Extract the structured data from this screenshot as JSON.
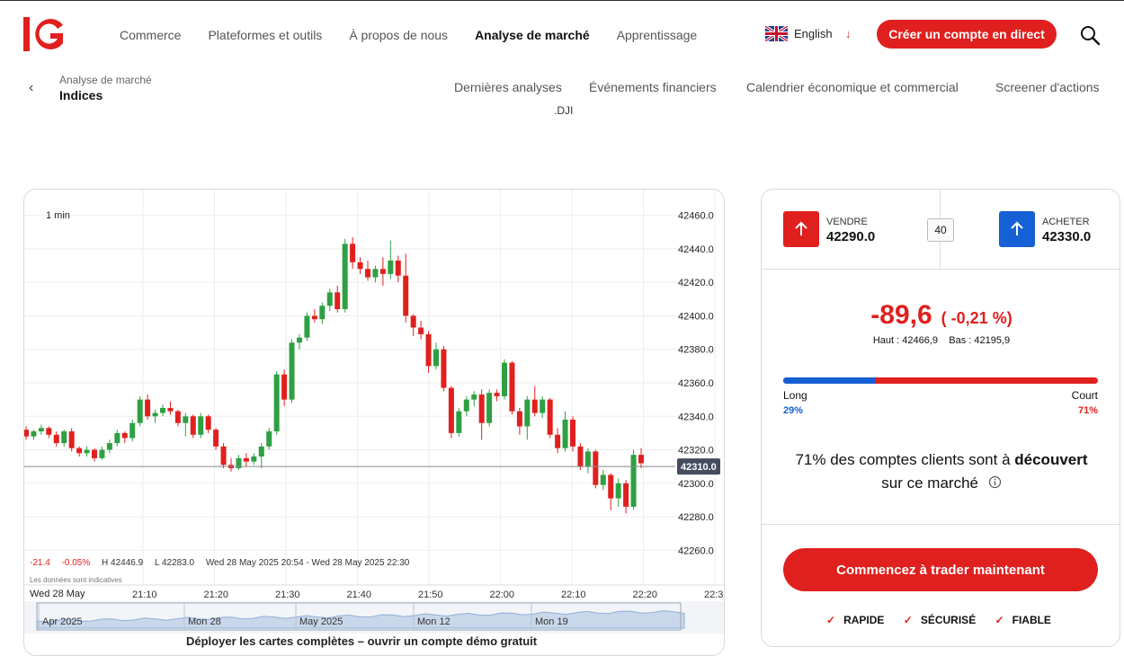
{
  "brand": {
    "logo_text": "IG",
    "accent": "#e0201e",
    "blue": "#1560d4"
  },
  "nav": {
    "items": [
      "Commerce",
      "Plateformes et outils",
      "À propos de nous",
      "Analyse de marché",
      "Apprentissage"
    ],
    "active_index": 3
  },
  "language": {
    "label": "English",
    "icon": "uk-flag-icon",
    "arrow": "↓"
  },
  "header": {
    "cta": "Créer un compte en direct"
  },
  "breadcrumb": {
    "parent": "Analyse de marché",
    "current": "Indices"
  },
  "subnav": [
    "Dernières analyses",
    "Événements financiers",
    "Calendrier économique et commercial",
    "Screener d'actions"
  ],
  "symbol": ".DJI",
  "chart": {
    "timeframe": "1 min",
    "last_price_label": "42310.0",
    "stats": {
      "change": "-21.4",
      "change_pct": "-0.05%",
      "high": "H 42446.9",
      "low": "L 42283.0",
      "range": "Wed 28 May 2025 20:54 - Wed 28 May 2025 22:30"
    },
    "indicative": "Les données sont indicatives",
    "first_date": "Wed 28 May",
    "navigator_labels": [
      "Apr 2025",
      "Mon 28",
      "May 2025",
      "Mon 12",
      "Mon 19"
    ],
    "footer_note": "Déployer les cartes complètes – ouvrir un compte démo gratuit"
  },
  "chart_data": {
    "type": "candlestick",
    "title": ".DJI",
    "xlabel": "",
    "ylabel": "",
    "ylim": [
      42250,
      42470
    ],
    "y_ticks": [
      "42460.0",
      "42440.0",
      "42420.0",
      "42400.0",
      "42380.0",
      "42360.0",
      "42340.0",
      "42320.0",
      "42300.0",
      "42280.0",
      "42260.0"
    ],
    "x_ticks": [
      "21:10",
      "21:20",
      "21:30",
      "21:40",
      "21:50",
      "22:00",
      "22:10",
      "22:20",
      "22:3"
    ],
    "last_price": 42310.0,
    "candles": [
      [
        42332,
        42334,
        42326,
        42328
      ],
      [
        42328,
        42332,
        42326,
        42331
      ],
      [
        42331,
        42335,
        42329,
        42333
      ],
      [
        42333,
        42334,
        42327,
        42329
      ],
      [
        42329,
        42331,
        42322,
        42324
      ],
      [
        42324,
        42332,
        42322,
        42331
      ],
      [
        42331,
        42333,
        42319,
        42321
      ],
      [
        42321,
        42322,
        42316,
        42318
      ],
      [
        42318,
        42322,
        42316,
        42320
      ],
      [
        42320,
        42321,
        42313,
        42315
      ],
      [
        42315,
        42322,
        42314,
        42320
      ],
      [
        42320,
        42326,
        42318,
        42324
      ],
      [
        42324,
        42332,
        42322,
        42330
      ],
      [
        42330,
        42331,
        42324,
        42327
      ],
      [
        42327,
        42338,
        42325,
        42336
      ],
      [
        42336,
        42352,
        42334,
        42350
      ],
      [
        42350,
        42353,
        42338,
        42340
      ],
      [
        42340,
        42344,
        42336,
        42342
      ],
      [
        42342,
        42347,
        42340,
        42345
      ],
      [
        42345,
        42349,
        42341,
        42343
      ],
      [
        42343,
        42344,
        42334,
        42336
      ],
      [
        42336,
        42342,
        42328,
        42340
      ],
      [
        42340,
        42341,
        42327,
        42329
      ],
      [
        42329,
        42342,
        42327,
        42340
      ],
      [
        42340,
        42341,
        42330,
        42332
      ],
      [
        42332,
        42333,
        42320,
        42322
      ],
      [
        42322,
        42324,
        42309,
        42311
      ],
      [
        42311,
        42315,
        42307,
        42309
      ],
      [
        42309,
        42317,
        42308,
        42315
      ],
      [
        42315,
        42318,
        42310,
        42313
      ],
      [
        42313,
        42318,
        42311,
        42316
      ],
      [
        42316,
        42324,
        42309,
        42322
      ],
      [
        42322,
        42333,
        42320,
        42331
      ],
      [
        42331,
        42367,
        42329,
        42365
      ],
      [
        42365,
        42368,
        42346,
        42350
      ],
      [
        42350,
        42386,
        42348,
        42384
      ],
      [
        42384,
        42389,
        42380,
        42387
      ],
      [
        42387,
        42402,
        42385,
        42400
      ],
      [
        42400,
        42404,
        42396,
        42398
      ],
      [
        42398,
        42408,
        42395,
        42406
      ],
      [
        42406,
        42416,
        42403,
        42414
      ],
      [
        42414,
        42418,
        42402,
        42404
      ],
      [
        42404,
        42446,
        42402,
        42443
      ],
      [
        42443,
        42447,
        42428,
        42432
      ],
      [
        42432,
        42435,
        42425,
        42428
      ],
      [
        42428,
        42433,
        42421,
        42423
      ],
      [
        42423,
        42430,
        42420,
        42428
      ],
      [
        42428,
        42435,
        42418,
        42425
      ],
      [
        42425,
        42445,
        42422,
        42433
      ],
      [
        42433,
        42436,
        42420,
        42424
      ],
      [
        42424,
        42437,
        42396,
        42400
      ],
      [
        42400,
        42401,
        42388,
        42393
      ],
      [
        42393,
        42397,
        42386,
        42389
      ],
      [
        42389,
        42391,
        42366,
        42370
      ],
      [
        42370,
        42384,
        42368,
        42380
      ],
      [
        42380,
        42382,
        42355,
        42357
      ],
      [
        42357,
        42358,
        42327,
        42330
      ],
      [
        42330,
        42345,
        42328,
        42343
      ],
      [
        42343,
        42352,
        42340,
        42350
      ],
      [
        42350,
        42355,
        42346,
        42353
      ],
      [
        42353,
        42356,
        42326,
        42336
      ],
      [
        42336,
        42356,
        42334,
        42354
      ],
      [
        42354,
        42356,
        42349,
        42352
      ],
      [
        42352,
        42374,
        42350,
        42372
      ],
      [
        42372,
        42373,
        42341,
        42343
      ],
      [
        42343,
        42345,
        42329,
        42334
      ],
      [
        42334,
        42352,
        42326,
        42350
      ],
      [
        42350,
        42358,
        42340,
        42342
      ],
      [
        42342,
        42352,
        42339,
        42350
      ],
      [
        42350,
        42351,
        42327,
        42329
      ],
      [
        42329,
        42333,
        42318,
        42321
      ],
      [
        42321,
        42343,
        42319,
        42338
      ],
      [
        42338,
        42340,
        42319,
        42322
      ],
      [
        42322,
        42324,
        42308,
        42310
      ],
      [
        42310,
        42321,
        42306,
        42319
      ],
      [
        42319,
        42320,
        42297,
        42299
      ],
      [
        42299,
        42308,
        42296,
        42305
      ],
      [
        42305,
        42306,
        42284,
        42291
      ],
      [
        42291,
        42303,
        42286,
        42300
      ],
      [
        42300,
        42302,
        42282,
        42286
      ],
      [
        42286,
        42320,
        42284,
        42317
      ],
      [
        42317,
        42321,
        42309,
        42312
      ]
    ]
  },
  "trade": {
    "sell_label": "VENDRE",
    "sell_price": "42290.0",
    "buy_label": "ACHETER",
    "buy_price": "42330.0",
    "spread": "40",
    "change": "-89,6",
    "change_pct": "( -0,21 %)",
    "high": "Haut : 42466,9",
    "low": "Bas : 42195,9",
    "long_label": "Long",
    "short_label": "Court",
    "long_pct": "29%",
    "short_pct": "71%",
    "long_fraction": 0.29,
    "sentiment_line1_a": "71% des comptes clients sont à ",
    "sentiment_line1_b": "découvert",
    "sentiment_line2": "sur ce marché",
    "cta": "Commencez à trader maintenant",
    "badges": [
      "RAPIDE",
      "SÉCURISÉ",
      "FIABLE"
    ]
  }
}
